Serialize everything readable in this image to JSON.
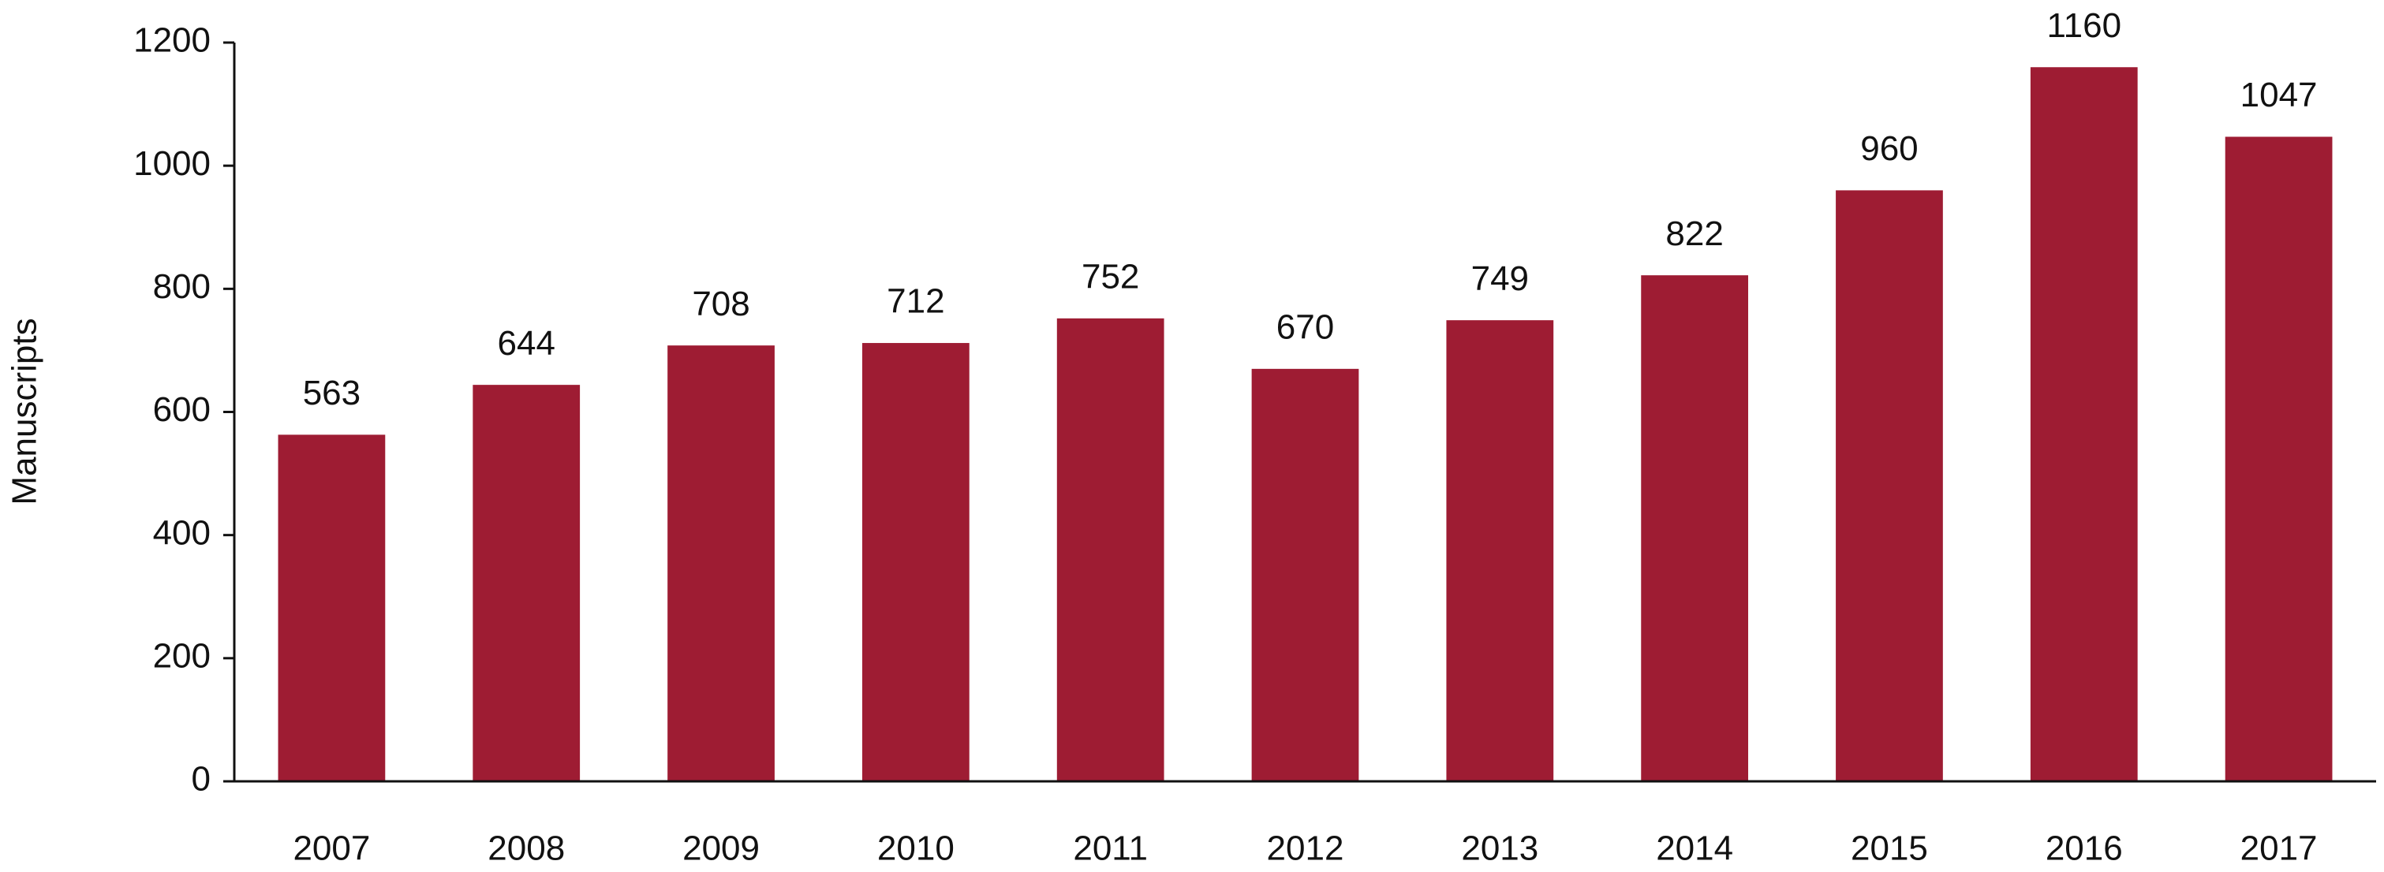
{
  "chart_data": {
    "type": "bar",
    "y_label": "Manuscripts",
    "categories": [
      "2007",
      "2008",
      "2009",
      "2010",
      "2011",
      "2012",
      "2013",
      "2014",
      "2015",
      "2016",
      "2017"
    ],
    "values": [
      563,
      644,
      708,
      712,
      752,
      670,
      749,
      822,
      960,
      1160,
      1047
    ],
    "color": "#9e1c33",
    "ylim": [
      0,
      1200
    ],
    "yticks": [
      0,
      200,
      400,
      600,
      800,
      1000,
      1200
    ],
    "grid": false
  }
}
